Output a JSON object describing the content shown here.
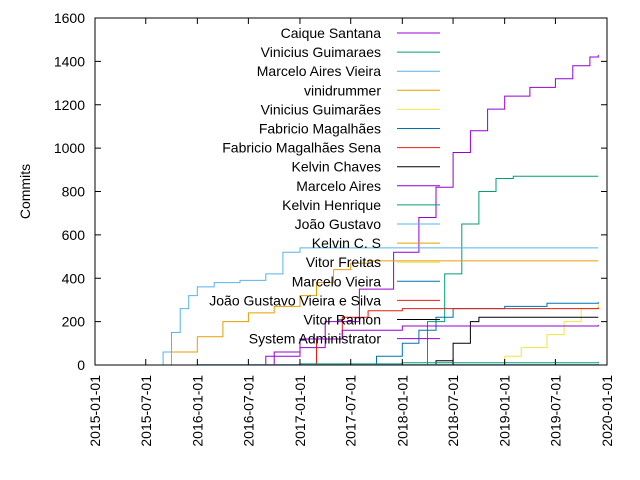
{
  "chart_data": {
    "type": "line",
    "title": "",
    "xlabel": "",
    "ylabel": "Commits",
    "ylim": [
      0,
      1600
    ],
    "xlim": [
      "2015-01-01",
      "2020-01-01"
    ],
    "x_ticks": [
      "2015-01-01",
      "2015-07-01",
      "2016-01-01",
      "2016-07-01",
      "2017-01-01",
      "2017-07-01",
      "2018-01-01",
      "2018-07-01",
      "2019-01-01",
      "2019-07-01",
      "2020-01-01"
    ],
    "y_ticks": [
      0,
      200,
      400,
      600,
      800,
      1000,
      1200,
      1400,
      1600
    ],
    "grid": false,
    "legend_position": "top-right",
    "series": [
      {
        "name": "Caique Santana",
        "color": "#9400d3",
        "points": [
          [
            "2016-01-01",
            0
          ],
          [
            "2016-09-01",
            40
          ],
          [
            "2017-01-01",
            80
          ],
          [
            "2017-04-01",
            200
          ],
          [
            "2017-08-01",
            350
          ],
          [
            "2017-12-01",
            520
          ],
          [
            "2018-03-01",
            680
          ],
          [
            "2018-05-01",
            820
          ],
          [
            "2018-07-01",
            980
          ],
          [
            "2018-09-01",
            1080
          ],
          [
            "2018-11-01",
            1180
          ],
          [
            "2019-01-01",
            1240
          ],
          [
            "2019-04-01",
            1280
          ],
          [
            "2019-07-01",
            1320
          ],
          [
            "2019-09-01",
            1380
          ],
          [
            "2019-11-01",
            1420
          ],
          [
            "2019-12-01",
            1430
          ]
        ]
      },
      {
        "name": "Vinicius Guimaraes",
        "color": "#009e73",
        "points": [
          [
            "2017-09-01",
            0
          ],
          [
            "2018-02-01",
            0
          ],
          [
            "2018-04-01",
            200
          ],
          [
            "2018-06-01",
            420
          ],
          [
            "2018-08-01",
            650
          ],
          [
            "2018-10-01",
            800
          ],
          [
            "2018-12-01",
            860
          ],
          [
            "2019-02-01",
            870
          ],
          [
            "2019-12-01",
            870
          ]
        ]
      },
      {
        "name": "Marcelo Aires Vieira",
        "color": "#56b4e9",
        "points": [
          [
            "2015-05-01",
            0
          ],
          [
            "2015-09-01",
            60
          ],
          [
            "2015-10-01",
            150
          ],
          [
            "2015-11-01",
            260
          ],
          [
            "2015-12-01",
            320
          ],
          [
            "2016-01-01",
            360
          ],
          [
            "2016-03-01",
            380
          ],
          [
            "2016-06-01",
            390
          ],
          [
            "2016-09-01",
            420
          ],
          [
            "2016-11-01",
            520
          ],
          [
            "2017-01-01",
            540
          ],
          [
            "2019-12-01",
            540
          ]
        ]
      },
      {
        "name": "vinidrummer",
        "color": "#e69f00",
        "points": [
          [
            "2015-08-01",
            0
          ],
          [
            "2015-10-01",
            60
          ],
          [
            "2016-01-01",
            130
          ],
          [
            "2016-04-01",
            200
          ],
          [
            "2016-07-01",
            240
          ],
          [
            "2016-10-01",
            270
          ],
          [
            "2017-01-01",
            320
          ],
          [
            "2017-03-01",
            380
          ],
          [
            "2017-05-01",
            440
          ],
          [
            "2017-07-01",
            470
          ],
          [
            "2017-09-01",
            480
          ],
          [
            "2019-12-01",
            480
          ]
        ]
      },
      {
        "name": "Vinicius Guimarães",
        "color": "#f0e442",
        "points": [
          [
            "2018-09-01",
            0
          ],
          [
            "2019-01-01",
            40
          ],
          [
            "2019-03-01",
            80
          ],
          [
            "2019-06-01",
            140
          ],
          [
            "2019-08-01",
            200
          ],
          [
            "2019-10-01",
            260
          ],
          [
            "2019-12-01",
            280
          ]
        ]
      },
      {
        "name": "Fabricio Magalhães",
        "color": "#0072b2",
        "points": [
          [
            "2017-06-01",
            0
          ],
          [
            "2017-10-01",
            40
          ],
          [
            "2018-01-01",
            100
          ],
          [
            "2018-03-01",
            160
          ],
          [
            "2018-05-01",
            220
          ],
          [
            "2018-07-01",
            260
          ],
          [
            "2019-01-01",
            270
          ],
          [
            "2019-06-01",
            285
          ],
          [
            "2019-12-01",
            290
          ]
        ]
      },
      {
        "name": "Fabricio Magalhães Sena",
        "color": "#e51e10",
        "points": [
          [
            "2016-12-01",
            0
          ],
          [
            "2017-03-01",
            120
          ],
          [
            "2017-06-01",
            220
          ],
          [
            "2017-09-01",
            250
          ],
          [
            "2018-01-01",
            260
          ],
          [
            "2019-12-01",
            265
          ]
        ]
      },
      {
        "name": "Kelvin Chaves",
        "color": "#000000",
        "points": [
          [
            "2018-03-01",
            0
          ],
          [
            "2018-05-01",
            20
          ],
          [
            "2018-07-01",
            100
          ],
          [
            "2018-09-01",
            200
          ],
          [
            "2018-10-01",
            220
          ],
          [
            "2019-12-01",
            220
          ]
        ]
      },
      {
        "name": "Marcelo Aires",
        "color": "#9400d3",
        "points": [
          [
            "2016-06-01",
            0
          ],
          [
            "2016-10-01",
            60
          ],
          [
            "2017-01-01",
            120
          ],
          [
            "2017-06-01",
            160
          ],
          [
            "2018-01-01",
            180
          ],
          [
            "2019-12-01",
            185
          ]
        ]
      },
      {
        "name": "Kelvin Henrique",
        "color": "#009e73",
        "points": [
          [
            "2016-03-01",
            0
          ],
          [
            "2017-01-01",
            5
          ],
          [
            "2018-01-01",
            10
          ],
          [
            "2019-12-01",
            15
          ]
        ]
      },
      {
        "name": "João Gustavo",
        "color": "#56b4e9",
        "points": [
          [
            "2015-06-01",
            0
          ],
          [
            "2016-01-01",
            2
          ],
          [
            "2019-12-01",
            5
          ]
        ]
      },
      {
        "name": "Kelvin C. S",
        "color": "#e69f00",
        "points": [
          [
            "2016-01-01",
            0
          ],
          [
            "2019-12-01",
            3
          ]
        ]
      },
      {
        "name": "Vitor Freitas",
        "color": "#f0e442",
        "points": [
          [
            "2016-01-01",
            0
          ],
          [
            "2019-12-01",
            2
          ]
        ]
      },
      {
        "name": "Marcelo Vieira",
        "color": "#0072b2",
        "points": [
          [
            "2016-01-01",
            0
          ],
          [
            "2019-12-01",
            2
          ]
        ]
      },
      {
        "name": "João Gustavo Vieira e Silva",
        "color": "#e51e10",
        "points": [
          [
            "2016-01-01",
            0
          ],
          [
            "2019-12-01",
            1
          ]
        ]
      },
      {
        "name": "Vitor Ramon",
        "color": "#000000",
        "points": [
          [
            "2016-01-01",
            0
          ],
          [
            "2019-12-01",
            1
          ]
        ]
      },
      {
        "name": "System Administrator",
        "color": "#9400d3",
        "points": [
          [
            "2015-01-01",
            0
          ],
          [
            "2019-12-01",
            1
          ]
        ]
      }
    ]
  }
}
